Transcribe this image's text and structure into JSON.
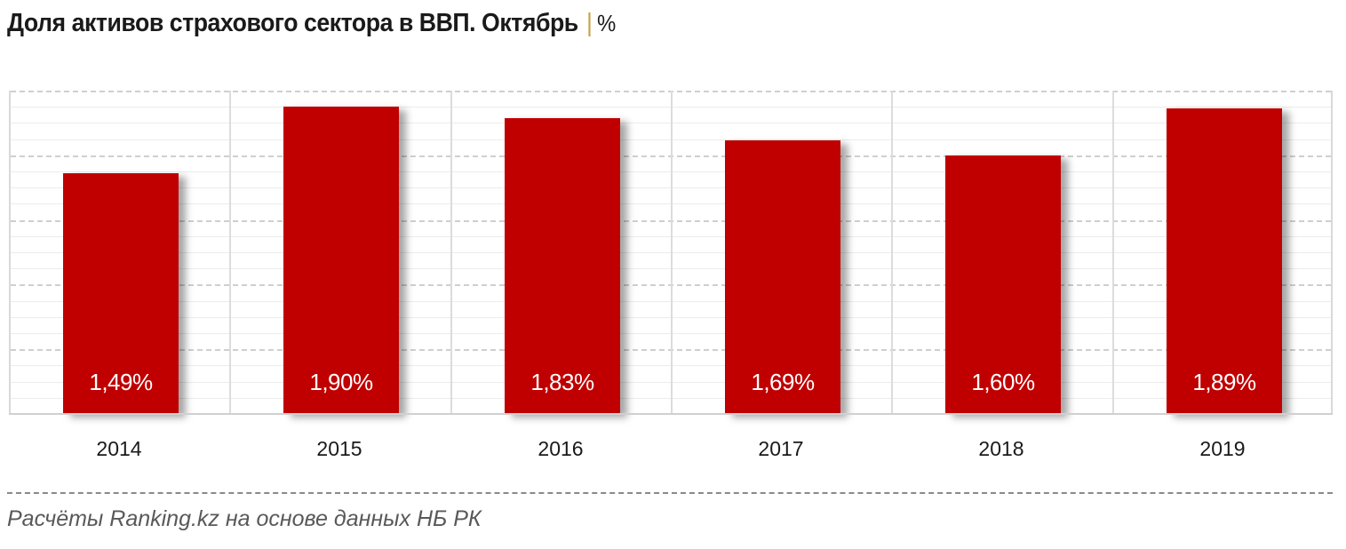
{
  "title": {
    "text": "Доля активов страхового сектора в ВВП. Октябрь",
    "separator": "|",
    "unit": "%"
  },
  "source": "Расчёты Ranking.kz на основе данных НБ РК",
  "colors": {
    "bar": "#c00000",
    "grid": "#cfcfcf",
    "label": "#ffffff"
  },
  "chart_data": {
    "type": "bar",
    "title": "Доля активов страхового сектора в ВВП. Октябрь | %",
    "categories": [
      "2014",
      "2015",
      "2016",
      "2017",
      "2018",
      "2019"
    ],
    "values": [
      1.49,
      1.9,
      1.83,
      1.69,
      1.6,
      1.89
    ],
    "data_labels": [
      "1,49%",
      "1,90%",
      "1,83%",
      "1,69%",
      "1,60%",
      "1,89%"
    ],
    "xlabel": "",
    "ylabel": "%",
    "ylim": [
      0,
      2.0
    ],
    "grid": true,
    "y_axis_visible": false,
    "legend": null
  }
}
